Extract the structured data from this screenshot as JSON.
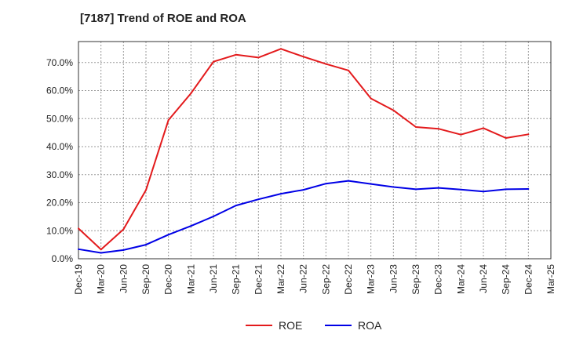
{
  "title": "[7187]  Trend of ROE and ROA",
  "chart_data": {
    "type": "line",
    "title": "[7187]  Trend of ROE and ROA",
    "xlabel": "",
    "ylabel": "",
    "ylim": [
      0,
      77.5
    ],
    "grid": true,
    "legend_position": "bottom",
    "y_ticks": [
      "0.0%",
      "10.0%",
      "20.0%",
      "30.0%",
      "40.0%",
      "50.0%",
      "60.0%",
      "70.0%"
    ],
    "categories": [
      "Dec-19",
      "Mar-20",
      "Jun-20",
      "Sep-20",
      "Dec-20",
      "Mar-21",
      "Jun-21",
      "Sep-21",
      "Dec-21",
      "Mar-22",
      "Jun-22",
      "Sep-22",
      "Dec-22",
      "Mar-23",
      "Jun-23",
      "Sep-23",
      "Dec-23",
      "Mar-24",
      "Jun-24",
      "Sep-24",
      "Dec-24",
      "Mar-25"
    ],
    "series": [
      {
        "name": "ROE",
        "color": "#e31a1c",
        "values": [
          10.8,
          3.3,
          10.5,
          24.5,
          49.5,
          59.0,
          70.3,
          72.8,
          71.8,
          74.9,
          72.1,
          69.5,
          67.2,
          57.2,
          53.0,
          47.0,
          46.4,
          44.3,
          46.6,
          43.1,
          44.4,
          null
        ]
      },
      {
        "name": "ROA",
        "color": "#0000e6",
        "values": [
          3.4,
          2.1,
          3.1,
          5.0,
          8.6,
          11.7,
          15.1,
          19.0,
          21.2,
          23.2,
          24.6,
          26.8,
          27.8,
          26.7,
          25.6,
          24.8,
          25.3,
          24.7,
          24.0,
          24.8,
          24.9,
          null
        ]
      }
    ]
  }
}
